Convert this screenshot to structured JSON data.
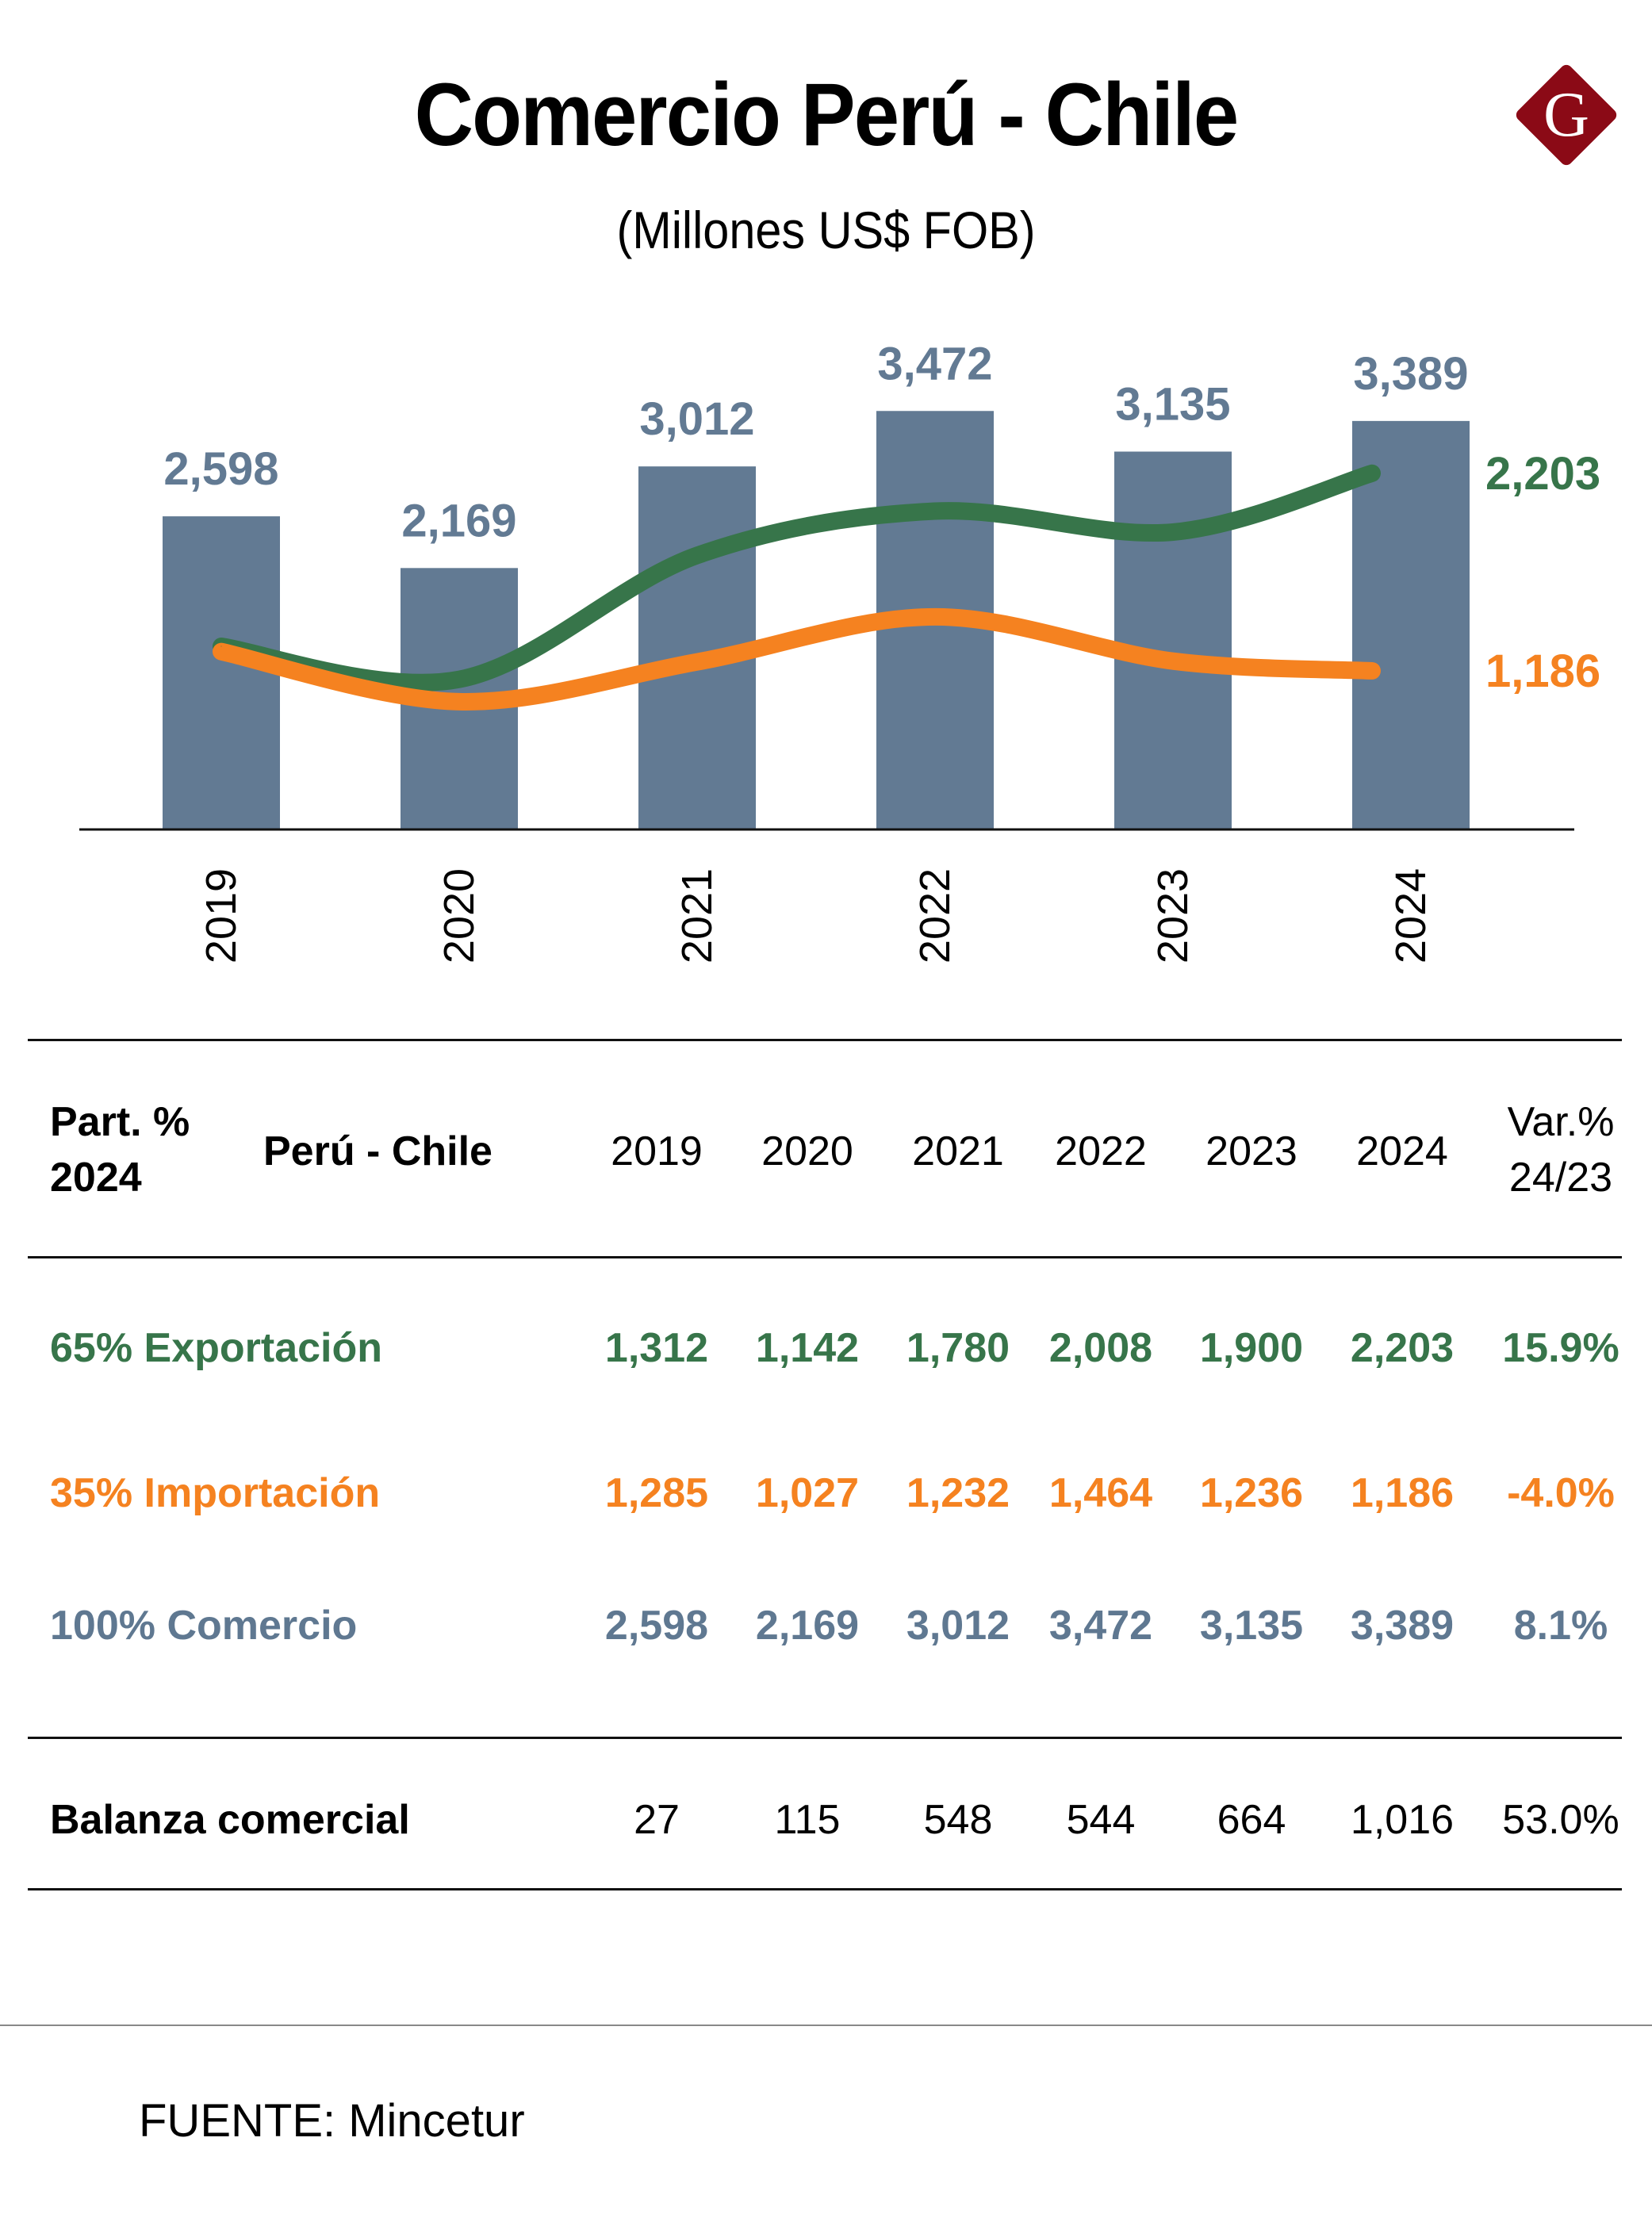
{
  "header": {
    "title": "Comercio Perú - Chile",
    "subtitle": "(Millones US$ FOB)",
    "logo_letter": "G",
    "logo_color": "#8b0a16"
  },
  "colors": {
    "bar": "#627a93",
    "export": "#37754a",
    "import": "#f58220",
    "comercio_text": "#5f7891"
  },
  "chart_data": {
    "type": "bar",
    "title": "Comercio Perú - Chile",
    "subtitle": "(Millones US$ FOB)",
    "xlabel": "",
    "ylabel": "",
    "categories": [
      "2019",
      "2020",
      "2021",
      "2022",
      "2023",
      "2024"
    ],
    "grid": false,
    "legend": "none",
    "series": [
      {
        "name": "Comercio",
        "type": "bar",
        "values": [
          2598,
          2169,
          3012,
          3472,
          3135,
          3389
        ],
        "labels": [
          "2,598",
          "2,169",
          "3,012",
          "3,472",
          "3,135",
          "3,389"
        ]
      },
      {
        "name": "Exportación",
        "type": "line",
        "values": [
          1312,
          1142,
          1780,
          2008,
          1900,
          2203
        ],
        "end_label": "2,203"
      },
      {
        "name": "Importación",
        "type": "line",
        "values": [
          1285,
          1027,
          1232,
          1464,
          1236,
          1186
        ],
        "end_label": "1,186"
      }
    ],
    "ylim": [
      0,
      3600
    ]
  },
  "table": {
    "header": {
      "part_label_line1": "Part. %",
      "part_label_line2": "2024",
      "name_label": "Perú - Chile",
      "years": [
        "2019",
        "2020",
        "2021",
        "2022",
        "2023",
        "2024"
      ],
      "var_line1": "Var.%",
      "var_line2": "24/23"
    },
    "rows": [
      {
        "label": "65% Exportación",
        "values": [
          "1,312",
          "1,142",
          "1,780",
          "2,008",
          "1,900",
          "2,203"
        ],
        "var": "15.9%",
        "color": "green"
      },
      {
        "label": "35% Importación",
        "values": [
          "1,285",
          "1,027",
          "1,232",
          "1,464",
          "1,236",
          "1,186"
        ],
        "var": "-4.0%",
        "color": "orange"
      },
      {
        "label": "100% Comercio",
        "values": [
          "2,598",
          "2,169",
          "3,012",
          "3,472",
          "3,135",
          "3,389"
        ],
        "var": "8.1%",
        "color": "slate"
      }
    ],
    "balance": {
      "label": "Balanza comercial",
      "values": [
        "27",
        "115",
        "548",
        "544",
        "664",
        "1,016"
      ],
      "var": "53.0%"
    }
  },
  "footer": {
    "source": "FUENTE: Mincetur"
  }
}
